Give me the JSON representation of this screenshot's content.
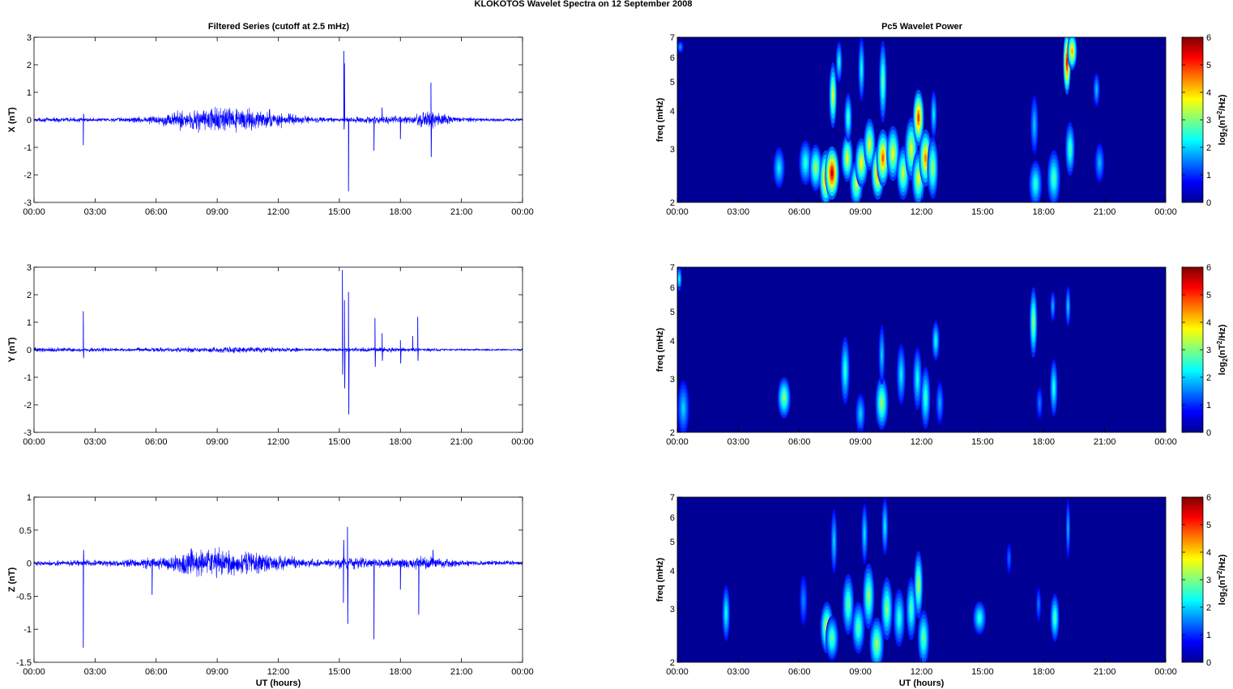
{
  "figure": {
    "suptitle": "KLOKOTOS Wavelet Spectra on 12 September 2008",
    "left_title": "Filtered Series (cutoff at 2.5 mHz)",
    "right_title": "Pc5 Wavelet Power"
  },
  "chart_data": [
    {
      "type": "line",
      "name": "x-series",
      "ylabel": "X (nT)",
      "xlabel": "",
      "ylim": [
        -3,
        3
      ],
      "yticks": [
        -3,
        -2,
        -1,
        0,
        1,
        2,
        3
      ],
      "xticks": [
        "00:00",
        "03:00",
        "06:00",
        "09:00",
        "12:00",
        "15:00",
        "18:00",
        "21:00",
        "00:00"
      ],
      "xlim_hours": [
        0,
        24
      ],
      "line_color": "#0000ff",
      "activity": [
        {
          "t_hours": 0.0,
          "amp": 0.06
        },
        {
          "t_hours": 1.5,
          "amp": 0.08
        },
        {
          "t_hours": 3.0,
          "amp": 0.06
        },
        {
          "t_hours": 4.5,
          "amp": 0.08
        },
        {
          "t_hours": 6.0,
          "amp": 0.15
        },
        {
          "t_hours": 7.0,
          "amp": 0.28
        },
        {
          "t_hours": 8.0,
          "amp": 0.4
        },
        {
          "t_hours": 9.0,
          "amp": 0.42
        },
        {
          "t_hours": 10.0,
          "amp": 0.35
        },
        {
          "t_hours": 11.0,
          "amp": 0.32
        },
        {
          "t_hours": 12.0,
          "amp": 0.25
        },
        {
          "t_hours": 13.0,
          "amp": 0.15
        },
        {
          "t_hours": 14.5,
          "amp": 0.07
        },
        {
          "t_hours": 16.0,
          "amp": 0.1
        },
        {
          "t_hours": 17.5,
          "amp": 0.12
        },
        {
          "t_hours": 18.5,
          "amp": 0.12
        },
        {
          "t_hours": 19.5,
          "amp": 0.35
        },
        {
          "t_hours": 20.5,
          "amp": 0.12
        },
        {
          "t_hours": 22.0,
          "amp": 0.06
        },
        {
          "t_hours": 24.0,
          "amp": 0.05
        }
      ],
      "spikes": [
        {
          "t_hours": 2.42,
          "values": [
            -0.92,
            0.22
          ]
        },
        {
          "t_hours": 15.22,
          "values": [
            2.5,
            -0.35
          ]
        },
        {
          "t_hours": 15.25,
          "values": [
            2.05
          ]
        },
        {
          "t_hours": 15.45,
          "values": [
            -2.6
          ]
        },
        {
          "t_hours": 16.7,
          "values": [
            -1.12
          ]
        },
        {
          "t_hours": 17.1,
          "values": [
            0.45
          ]
        },
        {
          "t_hours": 18.0,
          "values": [
            -0.7
          ]
        },
        {
          "t_hours": 19.5,
          "values": [
            1.35,
            -1.35
          ]
        }
      ]
    },
    {
      "type": "line",
      "name": "y-series",
      "ylabel": "Y (nT)",
      "xlabel": "",
      "ylim": [
        -3,
        3
      ],
      "yticks": [
        -3,
        -2,
        -1,
        0,
        1,
        2,
        3
      ],
      "xticks": [
        "00:00",
        "03:00",
        "06:00",
        "09:00",
        "12:00",
        "15:00",
        "18:00",
        "21:00",
        "00:00"
      ],
      "xlim_hours": [
        0,
        24
      ],
      "line_color": "#0000ff",
      "activity": [
        {
          "t_hours": 0.0,
          "amp": 0.08
        },
        {
          "t_hours": 2.0,
          "amp": 0.07
        },
        {
          "t_hours": 5.0,
          "amp": 0.06
        },
        {
          "t_hours": 8.0,
          "amp": 0.09
        },
        {
          "t_hours": 10.0,
          "amp": 0.1
        },
        {
          "t_hours": 12.0,
          "amp": 0.08
        },
        {
          "t_hours": 14.0,
          "amp": 0.05
        },
        {
          "t_hours": 17.0,
          "amp": 0.08
        },
        {
          "t_hours": 20.0,
          "amp": 0.04
        },
        {
          "t_hours": 24.0,
          "amp": 0.03
        }
      ],
      "spikes": [
        {
          "t_hours": 2.42,
          "values": [
            1.4,
            -0.3
          ]
        },
        {
          "t_hours": 15.15,
          "values": [
            2.9,
            -0.9
          ]
        },
        {
          "t_hours": 15.25,
          "values": [
            1.8,
            -1.4
          ]
        },
        {
          "t_hours": 15.45,
          "values": [
            2.1,
            -2.35
          ]
        },
        {
          "t_hours": 16.75,
          "values": [
            1.15,
            -0.62
          ]
        },
        {
          "t_hours": 17.1,
          "values": [
            0.6,
            -0.4
          ]
        },
        {
          "t_hours": 18.0,
          "values": [
            0.35,
            -0.5
          ]
        },
        {
          "t_hours": 18.6,
          "values": [
            0.5
          ]
        },
        {
          "t_hours": 18.85,
          "values": [
            1.2,
            -0.4
          ]
        }
      ]
    },
    {
      "type": "line",
      "name": "z-series",
      "ylabel": "Z (nT)",
      "xlabel": "UT (hours)",
      "ylim": [
        -1.5,
        1
      ],
      "yticks": [
        -1.5,
        -1,
        -0.5,
        0,
        0.5,
        1
      ],
      "xticks": [
        "00:00",
        "03:00",
        "06:00",
        "09:00",
        "12:00",
        "15:00",
        "18:00",
        "21:00",
        "00:00"
      ],
      "xlim_hours": [
        0,
        24
      ],
      "line_color": "#0000ff",
      "activity": [
        {
          "t_hours": 0.0,
          "amp": 0.03
        },
        {
          "t_hours": 2.0,
          "amp": 0.04
        },
        {
          "t_hours": 4.5,
          "amp": 0.05
        },
        {
          "t_hours": 6.0,
          "amp": 0.08
        },
        {
          "t_hours": 7.5,
          "amp": 0.17
        },
        {
          "t_hours": 9.0,
          "amp": 0.2
        },
        {
          "t_hours": 10.5,
          "amp": 0.17
        },
        {
          "t_hours": 12.0,
          "amp": 0.1
        },
        {
          "t_hours": 14.0,
          "amp": 0.05
        },
        {
          "t_hours": 15.5,
          "amp": 0.08
        },
        {
          "t_hours": 17.0,
          "amp": 0.06
        },
        {
          "t_hours": 19.5,
          "amp": 0.09
        },
        {
          "t_hours": 21.0,
          "amp": 0.04
        },
        {
          "t_hours": 24.0,
          "amp": 0.03
        }
      ],
      "spikes": [
        {
          "t_hours": 2.42,
          "values": [
            -1.28,
            0.2
          ]
        },
        {
          "t_hours": 5.8,
          "values": [
            -0.48
          ]
        },
        {
          "t_hours": 15.2,
          "values": [
            -0.6,
            0.35
          ]
        },
        {
          "t_hours": 15.4,
          "values": [
            0.55,
            -0.92
          ]
        },
        {
          "t_hours": 16.7,
          "values": [
            -1.15
          ]
        },
        {
          "t_hours": 18.0,
          "values": [
            -0.4
          ]
        },
        {
          "t_hours": 18.9,
          "values": [
            -0.78
          ]
        },
        {
          "t_hours": 19.6,
          "values": [
            0.2
          ]
        }
      ]
    },
    {
      "type": "heatmap",
      "name": "x-wavelet",
      "ylabel": "freq (mHz)",
      "xlabel": "",
      "yscale": "log",
      "ylim": [
        2,
        7
      ],
      "yticks": [
        2,
        3,
        4,
        5,
        6,
        7
      ],
      "xticks": [
        "00:00",
        "03:00",
        "06:00",
        "09:00",
        "12:00",
        "15:00",
        "18:00",
        "21:00",
        "00:00"
      ],
      "xlim_hours": [
        0,
        24
      ],
      "colormap": "jet",
      "clim": [
        0,
        6
      ],
      "colorbar_label": "log2(nT^2/Hz)",
      "colorbar_ticks": [
        0,
        1,
        2,
        3,
        4,
        5,
        6
      ],
      "blobs": [
        {
          "t_hours": 0.15,
          "f_mHz": 6.5,
          "power": 1.2,
          "dt": 0.1,
          "df": 0.3
        },
        {
          "t_hours": 5.0,
          "f_mHz": 2.6,
          "power": 1.8,
          "dt": 0.18,
          "df": 0.4
        },
        {
          "t_hours": 6.3,
          "f_mHz": 2.7,
          "power": 2.2,
          "dt": 0.2,
          "df": 0.45
        },
        {
          "t_hours": 6.8,
          "f_mHz": 2.6,
          "power": 3.0,
          "dt": 0.2,
          "df": 0.45
        },
        {
          "t_hours": 7.3,
          "f_mHz": 2.4,
          "power": 4.5,
          "dt": 0.2,
          "df": 0.5
        },
        {
          "t_hours": 7.6,
          "f_mHz": 2.5,
          "power": 5.6,
          "dt": 0.22,
          "df": 0.5
        },
        {
          "t_hours": 7.65,
          "f_mHz": 4.5,
          "power": 3.4,
          "dt": 0.12,
          "df": 1.1
        },
        {
          "t_hours": 7.95,
          "f_mHz": 5.8,
          "power": 2.0,
          "dt": 0.1,
          "df": 0.9
        },
        {
          "t_hours": 8.35,
          "f_mHz": 2.8,
          "power": 3.4,
          "dt": 0.18,
          "df": 0.5
        },
        {
          "t_hours": 8.4,
          "f_mHz": 3.8,
          "power": 2.4,
          "dt": 0.12,
          "df": 0.7
        },
        {
          "t_hours": 8.8,
          "f_mHz": 2.3,
          "power": 3.2,
          "dt": 0.2,
          "df": 0.4
        },
        {
          "t_hours": 9.05,
          "f_mHz": 2.7,
          "power": 3.6,
          "dt": 0.2,
          "df": 0.5
        },
        {
          "t_hours": 9.05,
          "f_mHz": 5.5,
          "power": 2.0,
          "dt": 0.1,
          "df": 1.3
        },
        {
          "t_hours": 9.45,
          "f_mHz": 3.1,
          "power": 3.4,
          "dt": 0.18,
          "df": 0.6
        },
        {
          "t_hours": 9.85,
          "f_mHz": 2.5,
          "power": 4.4,
          "dt": 0.2,
          "df": 0.5
        },
        {
          "t_hours": 10.1,
          "f_mHz": 2.8,
          "power": 4.6,
          "dt": 0.2,
          "df": 0.6
        },
        {
          "t_hours": 10.1,
          "f_mHz": 5.0,
          "power": 2.6,
          "dt": 0.12,
          "df": 1.5
        },
        {
          "t_hours": 10.6,
          "f_mHz": 2.9,
          "power": 3.5,
          "dt": 0.2,
          "df": 0.6
        },
        {
          "t_hours": 11.1,
          "f_mHz": 2.5,
          "power": 3.2,
          "dt": 0.2,
          "df": 0.5
        },
        {
          "t_hours": 11.5,
          "f_mHz": 3.0,
          "power": 3.4,
          "dt": 0.2,
          "df": 0.7
        },
        {
          "t_hours": 11.85,
          "f_mHz": 3.8,
          "power": 4.9,
          "dt": 0.17,
          "df": 0.8
        },
        {
          "t_hours": 11.85,
          "f_mHz": 2.4,
          "power": 3.4,
          "dt": 0.2,
          "df": 0.5
        },
        {
          "t_hours": 12.2,
          "f_mHz": 2.8,
          "power": 4.4,
          "dt": 0.2,
          "df": 0.6
        },
        {
          "t_hours": 12.55,
          "f_mHz": 2.6,
          "power": 3.0,
          "dt": 0.17,
          "df": 0.6
        },
        {
          "t_hours": 12.6,
          "f_mHz": 3.9,
          "power": 1.8,
          "dt": 0.1,
          "df": 0.7
        },
        {
          "t_hours": 17.55,
          "f_mHz": 3.6,
          "power": 1.5,
          "dt": 0.12,
          "df": 0.8
        },
        {
          "t_hours": 17.6,
          "f_mHz": 2.3,
          "power": 2.2,
          "dt": 0.2,
          "df": 0.4
        },
        {
          "t_hours": 18.5,
          "f_mHz": 2.4,
          "power": 2.4,
          "dt": 0.2,
          "df": 0.5
        },
        {
          "t_hours": 19.15,
          "f_mHz": 5.8,
          "power": 5.4,
          "dt": 0.12,
          "df": 1.4
        },
        {
          "t_hours": 19.4,
          "f_mHz": 6.3,
          "power": 4.2,
          "dt": 0.15,
          "df": 0.9
        },
        {
          "t_hours": 19.3,
          "f_mHz": 3.0,
          "power": 2.4,
          "dt": 0.15,
          "df": 0.6
        },
        {
          "t_hours": 20.6,
          "f_mHz": 4.7,
          "power": 1.5,
          "dt": 0.1,
          "df": 0.6
        },
        {
          "t_hours": 20.75,
          "f_mHz": 2.7,
          "power": 1.4,
          "dt": 0.15,
          "df": 0.4
        }
      ]
    },
    {
      "type": "heatmap",
      "name": "y-wavelet",
      "ylabel": "freq (mHz)",
      "xlabel": "",
      "yscale": "log",
      "ylim": [
        2,
        7
      ],
      "yticks": [
        2,
        3,
        4,
        5,
        6,
        7
      ],
      "xticks": [
        "00:00",
        "03:00",
        "06:00",
        "09:00",
        "12:00",
        "15:00",
        "18:00",
        "21:00",
        "00:00"
      ],
      "xlim_hours": [
        0,
        24
      ],
      "colormap": "jet",
      "clim": [
        0,
        6
      ],
      "colorbar_label": "log2(nT^2/Hz)",
      "colorbar_ticks": [
        0,
        1,
        2,
        3,
        4,
        5,
        6
      ],
      "blobs": [
        {
          "t_hours": 0.1,
          "f_mHz": 6.4,
          "power": 2.0,
          "dt": 0.08,
          "df": 0.6
        },
        {
          "t_hours": 0.3,
          "f_mHz": 2.4,
          "power": 1.6,
          "dt": 0.18,
          "df": 0.5
        },
        {
          "t_hours": 5.25,
          "f_mHz": 2.6,
          "power": 2.8,
          "dt": 0.2,
          "df": 0.4
        },
        {
          "t_hours": 8.25,
          "f_mHz": 3.2,
          "power": 2.2,
          "dt": 0.14,
          "df": 0.8
        },
        {
          "t_hours": 9.0,
          "f_mHz": 2.3,
          "power": 1.6,
          "dt": 0.15,
          "df": 0.35
        },
        {
          "t_hours": 10.05,
          "f_mHz": 2.5,
          "power": 2.9,
          "dt": 0.2,
          "df": 0.5
        },
        {
          "t_hours": 10.05,
          "f_mHz": 3.6,
          "power": 1.6,
          "dt": 0.1,
          "df": 0.8
        },
        {
          "t_hours": 11.0,
          "f_mHz": 3.1,
          "power": 1.8,
          "dt": 0.14,
          "df": 0.7
        },
        {
          "t_hours": 11.8,
          "f_mHz": 3.0,
          "power": 2.0,
          "dt": 0.14,
          "df": 0.7
        },
        {
          "t_hours": 12.2,
          "f_mHz": 2.6,
          "power": 2.3,
          "dt": 0.15,
          "df": 0.6
        },
        {
          "t_hours": 12.7,
          "f_mHz": 4.0,
          "power": 2.0,
          "dt": 0.12,
          "df": 0.6
        },
        {
          "t_hours": 12.9,
          "f_mHz": 2.5,
          "power": 1.3,
          "dt": 0.12,
          "df": 0.4
        },
        {
          "t_hours": 17.5,
          "f_mHz": 4.6,
          "power": 2.9,
          "dt": 0.12,
          "df": 1.2
        },
        {
          "t_hours": 18.5,
          "f_mHz": 2.8,
          "power": 2.1,
          "dt": 0.12,
          "df": 0.6
        },
        {
          "t_hours": 18.45,
          "f_mHz": 5.2,
          "power": 1.4,
          "dt": 0.08,
          "df": 0.6
        },
        {
          "t_hours": 19.2,
          "f_mHz": 5.2,
          "power": 1.6,
          "dt": 0.08,
          "df": 0.8
        },
        {
          "t_hours": 17.8,
          "f_mHz": 2.5,
          "power": 1.0,
          "dt": 0.1,
          "df": 0.3
        }
      ]
    },
    {
      "type": "heatmap",
      "name": "z-wavelet",
      "ylabel": "freq (mHz)",
      "xlabel": "UT (hours)",
      "yscale": "log",
      "ylim": [
        2,
        7
      ],
      "yticks": [
        2,
        3,
        4,
        5,
        6,
        7
      ],
      "xticks": [
        "00:00",
        "03:00",
        "06:00",
        "09:00",
        "12:00",
        "15:00",
        "18:00",
        "21:00",
        "00:00"
      ],
      "xlim_hours": [
        0,
        24
      ],
      "colormap": "jet",
      "clim": [
        0,
        6
      ],
      "colorbar_label": "log2(nT^2/Hz)",
      "colorbar_ticks": [
        0,
        1,
        2,
        3,
        4,
        5,
        6
      ],
      "blobs": [
        {
          "t_hours": 2.4,
          "f_mHz": 2.9,
          "power": 2.0,
          "dt": 0.12,
          "df": 0.6
        },
        {
          "t_hours": 6.2,
          "f_mHz": 3.2,
          "power": 1.1,
          "dt": 0.12,
          "df": 0.6
        },
        {
          "t_hours": 7.35,
          "f_mHz": 2.6,
          "power": 3.4,
          "dt": 0.2,
          "df": 0.5
        },
        {
          "t_hours": 7.6,
          "f_mHz": 2.4,
          "power": 2.6,
          "dt": 0.2,
          "df": 0.4
        },
        {
          "t_hours": 7.7,
          "f_mHz": 5.0,
          "power": 1.6,
          "dt": 0.1,
          "df": 1.2
        },
        {
          "t_hours": 8.4,
          "f_mHz": 3.1,
          "power": 2.6,
          "dt": 0.18,
          "df": 0.7
        },
        {
          "t_hours": 8.9,
          "f_mHz": 2.6,
          "power": 2.5,
          "dt": 0.2,
          "df": 0.5
        },
        {
          "t_hours": 9.2,
          "f_mHz": 5.3,
          "power": 1.7,
          "dt": 0.1,
          "df": 1.2
        },
        {
          "t_hours": 9.4,
          "f_mHz": 3.3,
          "power": 2.9,
          "dt": 0.18,
          "df": 0.8
        },
        {
          "t_hours": 9.8,
          "f_mHz": 2.3,
          "power": 3.0,
          "dt": 0.22,
          "df": 0.45
        },
        {
          "t_hours": 10.3,
          "f_mHz": 3.0,
          "power": 2.8,
          "dt": 0.18,
          "df": 0.7
        },
        {
          "t_hours": 10.2,
          "f_mHz": 5.6,
          "power": 1.8,
          "dt": 0.1,
          "df": 1.2
        },
        {
          "t_hours": 10.9,
          "f_mHz": 2.8,
          "power": 2.2,
          "dt": 0.18,
          "df": 0.6
        },
        {
          "t_hours": 11.5,
          "f_mHz": 3.0,
          "power": 2.4,
          "dt": 0.16,
          "df": 0.7
        },
        {
          "t_hours": 11.85,
          "f_mHz": 3.6,
          "power": 3.1,
          "dt": 0.14,
          "df": 0.9
        },
        {
          "t_hours": 12.1,
          "f_mHz": 2.4,
          "power": 2.6,
          "dt": 0.18,
          "df": 0.5
        },
        {
          "t_hours": 14.85,
          "f_mHz": 2.8,
          "power": 2.2,
          "dt": 0.2,
          "df": 0.35
        },
        {
          "t_hours": 16.3,
          "f_mHz": 4.4,
          "power": 0.9,
          "dt": 0.08,
          "df": 0.5
        },
        {
          "t_hours": 17.75,
          "f_mHz": 3.1,
          "power": 1.0,
          "dt": 0.08,
          "df": 0.4
        },
        {
          "t_hours": 18.55,
          "f_mHz": 2.8,
          "power": 2.4,
          "dt": 0.14,
          "df": 0.5
        },
        {
          "t_hours": 19.2,
          "f_mHz": 5.5,
          "power": 1.4,
          "dt": 0.07,
          "df": 1.2
        }
      ]
    }
  ]
}
